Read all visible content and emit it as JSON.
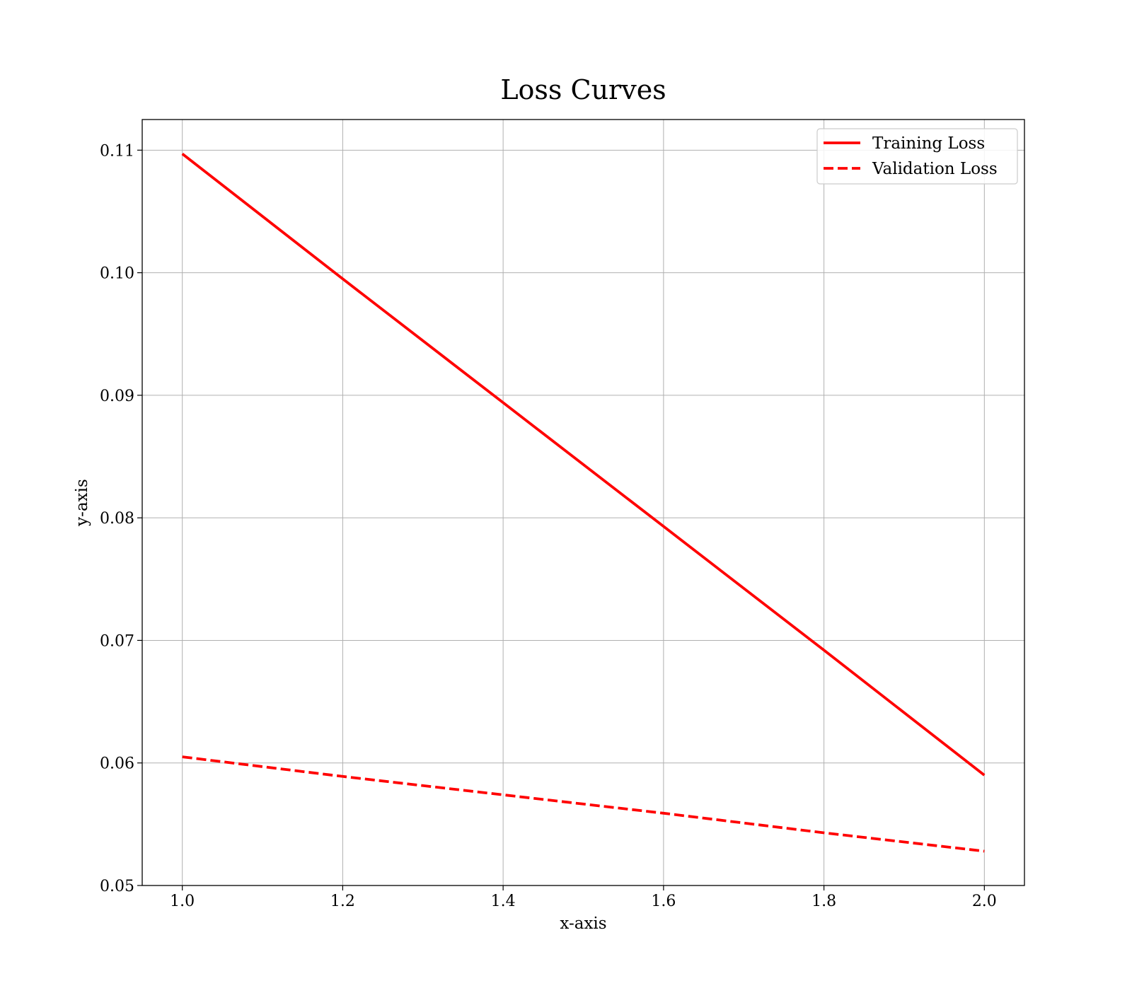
{
  "chart_data": {
    "type": "line",
    "title": "Loss Curves",
    "xlabel": "x-axis",
    "ylabel": "y-axis",
    "xlim": [
      0.95,
      2.05
    ],
    "ylim": [
      0.05,
      0.1125
    ],
    "xticks": [
      1.0,
      1.2,
      1.4,
      1.6,
      1.8,
      2.0
    ],
    "xtick_labels": [
      "1.0",
      "1.2",
      "1.4",
      "1.6",
      "1.8",
      "2.0"
    ],
    "yticks": [
      0.05,
      0.06,
      0.07,
      0.08,
      0.09,
      0.1,
      0.11
    ],
    "ytick_labels": [
      "0.05",
      "0.06",
      "0.07",
      "0.08",
      "0.09",
      "0.10",
      "0.11"
    ],
    "grid": true,
    "legend_position": "top-right",
    "series": [
      {
        "name": "Training Loss",
        "color": "#ff0000",
        "style": "solid",
        "x": [
          1.0,
          1.2,
          1.4,
          1.6,
          1.8,
          2.0
        ],
        "y": [
          0.1097,
          0.0995,
          0.0894,
          0.0793,
          0.0692,
          0.059
        ]
      },
      {
        "name": "Validation Loss",
        "color": "#ff0000",
        "style": "dashed",
        "x": [
          1.0,
          1.2,
          1.4,
          1.6,
          1.8,
          2.0
        ],
        "y": [
          0.0605,
          0.0589,
          0.0574,
          0.0559,
          0.0543,
          0.0528
        ]
      }
    ]
  }
}
